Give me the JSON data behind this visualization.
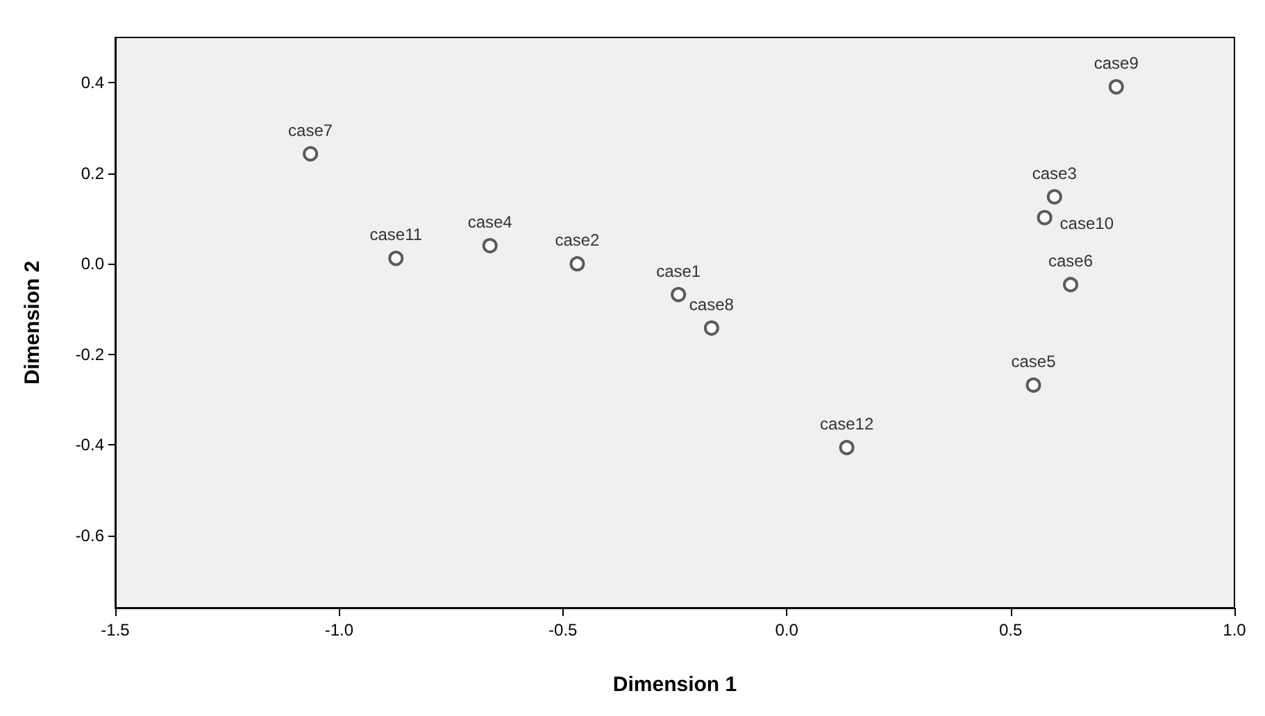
{
  "chart_data": {
    "type": "scatter",
    "xlabel": "Dimension 1",
    "ylabel": "Dimension 2",
    "x": [
      -0.242,
      -0.468,
      0.598,
      -0.663,
      0.551,
      0.634,
      -1.064,
      -0.168,
      0.736,
      0.576,
      -0.873,
      0.134
    ],
    "series": [
      {
        "color": "#333333",
        "values": [
          -0.068,
          0.0,
          0.148,
          0.04,
          -0.268,
          -0.046,
          0.243,
          -0.142,
          0.391,
          0.102,
          0.012,
          -0.406
        ]
      }
    ],
    "annotations": [
      {
        "text": "case1",
        "x": -0.242,
        "y": -0.068
      },
      {
        "text": "case2",
        "x": -0.468,
        "y": 0.0
      },
      {
        "text": "case3",
        "x": 0.598,
        "y": 0.148
      },
      {
        "text": "case4",
        "x": -0.663,
        "y": 0.04
      },
      {
        "text": "case5",
        "x": 0.551,
        "y": -0.268
      },
      {
        "text": "case6",
        "x": 0.634,
        "y": -0.046
      },
      {
        "text": "case7",
        "x": -1.064,
        "y": 0.243
      },
      {
        "text": "case8",
        "x": -0.168,
        "y": -0.142
      },
      {
        "text": "case9",
        "x": 0.736,
        "y": 0.391
      },
      {
        "text": "case10",
        "x": 0.576,
        "y": 0.102
      },
      {
        "text": "case11",
        "x": -0.873,
        "y": 0.012
      },
      {
        "text": "case12",
        "x": 0.134,
        "y": -0.406
      }
    ],
    "xlim": [
      -1.5,
      1.0
    ],
    "xticks": [
      -1.5,
      {
        "value": -1,
        "label": "-1.0"
      },
      -0.5,
      {
        "value": 0,
        "label": "0.0"
      },
      0.5,
      {
        "value": 1,
        "label": "1.0"
      }
    ],
    "ylim": [
      -0.76,
      0.5
    ],
    "yticks": [
      -0.6,
      -0.4,
      -0.2,
      {
        "value": 0,
        "label": "0.0"
      },
      0.2,
      0.4
    ],
    "grid": false,
    "marker": "circle"
  }
}
